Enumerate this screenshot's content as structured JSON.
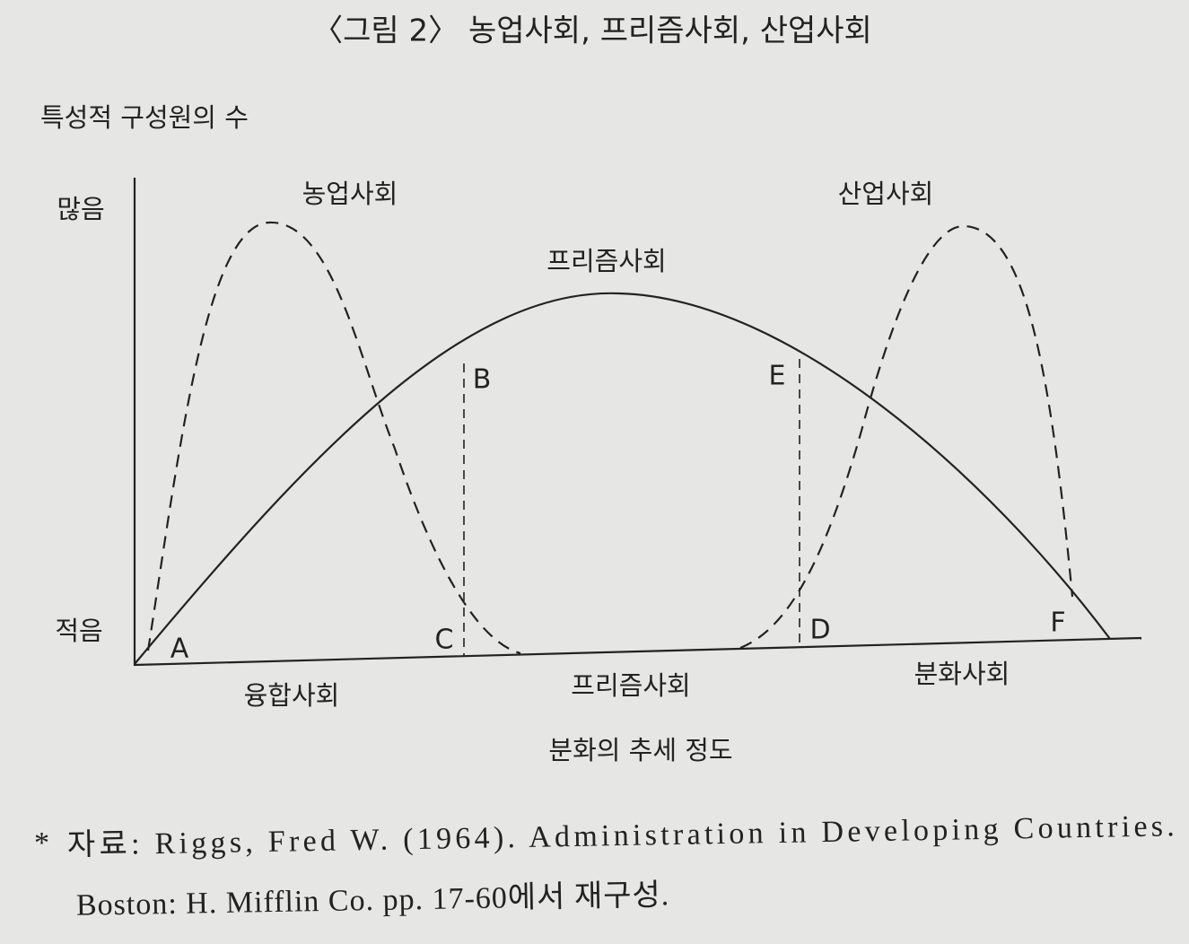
{
  "title": "〈그림 2〉 농업사회, 프리즘사회, 산업사회",
  "y_axis": {
    "label": "특성적 구성원의 수",
    "high": "많음",
    "low": "적음"
  },
  "curves": [
    {
      "label": "농업사회"
    },
    {
      "label": "프리즘사회"
    },
    {
      "label": "산업사회"
    }
  ],
  "points": [
    "A",
    "B",
    "C",
    "D",
    "E",
    "F"
  ],
  "x_axis": {
    "regions": [
      "융합사회",
      "프리즘사회",
      "분화사회"
    ],
    "label": "분화의 추세 정도"
  },
  "source": {
    "marker": "*",
    "lines": [
      "자료: Riggs, Fred W. (1964). Administration in Developing Countries.",
      "Boston: H. Mifflin Co. pp. 17-60에서 재구성."
    ]
  }
}
